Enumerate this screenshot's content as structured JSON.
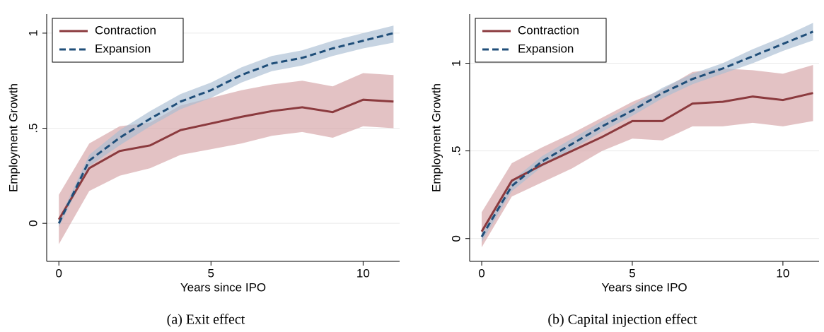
{
  "chart_data": [
    {
      "type": "line",
      "caption": "(a) Exit effect",
      "xlabel": "Years since IPO",
      "ylabel": "Employment Growth",
      "x": [
        0,
        1,
        2,
        3,
        4,
        5,
        6,
        7,
        8,
        9,
        10,
        11
      ],
      "series": [
        {
          "name": "Contraction",
          "color": "#8b3a3e",
          "band_color": "#d4a2a5",
          "dash": false,
          "values": [
            0.02,
            0.29,
            0.38,
            0.41,
            0.49,
            0.525,
            0.56,
            0.59,
            0.61,
            0.585,
            0.65,
            0.64
          ],
          "lower": [
            -0.11,
            0.17,
            0.25,
            0.29,
            0.36,
            0.39,
            0.42,
            0.46,
            0.48,
            0.45,
            0.51,
            0.5
          ],
          "upper": [
            0.15,
            0.42,
            0.51,
            0.53,
            0.62,
            0.66,
            0.7,
            0.73,
            0.75,
            0.72,
            0.79,
            0.78
          ]
        },
        {
          "name": "Expansion",
          "color": "#1f4e79",
          "band_color": "#a9bdd2",
          "dash": true,
          "values": [
            0.0,
            0.33,
            0.45,
            0.55,
            0.64,
            0.7,
            0.78,
            0.84,
            0.87,
            0.92,
            0.96,
            1.0
          ],
          "lower": [
            -0.02,
            0.3,
            0.41,
            0.51,
            0.6,
            0.66,
            0.74,
            0.8,
            0.83,
            0.88,
            0.92,
            0.95
          ],
          "upper": [
            0.02,
            0.36,
            0.49,
            0.59,
            0.68,
            0.74,
            0.82,
            0.88,
            0.91,
            0.96,
            1.0,
            1.04
          ]
        }
      ],
      "xlim": [
        -0.4,
        11.2
      ],
      "xticks": [
        0,
        5,
        10
      ],
      "ylim": [
        -0.2,
        1.1
      ],
      "yticks": [
        0,
        {
          "value": 0.5,
          "label": ".5"
        },
        1
      ],
      "grid": true,
      "legend": "upper left"
    },
    {
      "type": "line",
      "caption": "(b) Capital injection effect",
      "xlabel": "Years since IPO",
      "ylabel": "Employment Growth",
      "x": [
        0,
        1,
        2,
        3,
        4,
        5,
        6,
        7,
        8,
        9,
        10,
        11
      ],
      "series": [
        {
          "name": "Contraction",
          "color": "#8b3a3e",
          "band_color": "#d4a2a5",
          "dash": false,
          "values": [
            0.04,
            0.33,
            0.42,
            0.5,
            0.58,
            0.67,
            0.67,
            0.77,
            0.78,
            0.81,
            0.79,
            0.83
          ],
          "lower": [
            -0.05,
            0.24,
            0.32,
            0.4,
            0.5,
            0.57,
            0.56,
            0.64,
            0.64,
            0.66,
            0.64,
            0.67
          ],
          "upper": [
            0.15,
            0.43,
            0.52,
            0.6,
            0.69,
            0.78,
            0.85,
            0.95,
            0.97,
            0.96,
            0.94,
            0.99
          ]
        },
        {
          "name": "Expansion",
          "color": "#1f4e79",
          "band_color": "#a9bdd2",
          "dash": true,
          "values": [
            0.01,
            0.3,
            0.44,
            0.54,
            0.64,
            0.73,
            0.83,
            0.91,
            0.97,
            1.04,
            1.11,
            1.18
          ],
          "lower": [
            -0.02,
            0.27,
            0.41,
            0.51,
            0.61,
            0.7,
            0.8,
            0.88,
            0.94,
            1.0,
            1.07,
            1.13
          ],
          "upper": [
            0.04,
            0.33,
            0.47,
            0.57,
            0.67,
            0.76,
            0.86,
            0.94,
            1.0,
            1.08,
            1.15,
            1.23
          ]
        }
      ],
      "xlim": [
        -0.4,
        11.2
      ],
      "xticks": [
        0,
        5,
        10
      ],
      "ylim": [
        -0.13,
        1.28
      ],
      "yticks": [
        0,
        {
          "value": 0.5,
          "label": ".5"
        },
        1
      ],
      "grid": true,
      "legend": "upper left"
    }
  ]
}
